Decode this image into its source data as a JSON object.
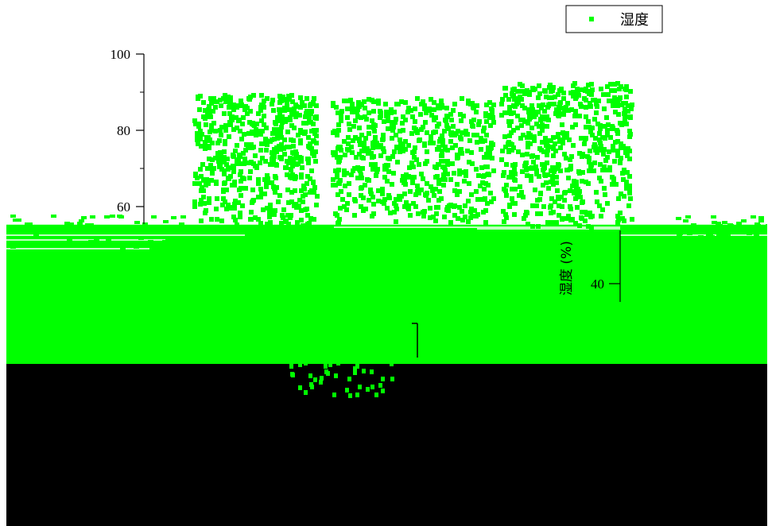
{
  "chart_data": {
    "type": "scatter",
    "title": "",
    "ylabel": "湿度 (%)",
    "ylim": [
      0,
      100
    ],
    "yticks": [
      "100",
      "80",
      "60",
      "40"
    ],
    "grid": false,
    "legend_position": "top-right",
    "series": [
      {
        "name": "湿度",
        "color": "#00ff00",
        "clusters": [
          {
            "x_range": [
              0.25,
              0.41
            ],
            "y_range": [
              55,
              90
            ]
          },
          {
            "x_range": [
              0.43,
              0.64
            ],
            "y_range": [
              56,
              89
            ]
          },
          {
            "x_range": [
              0.65,
              0.82
            ],
            "y_range": [
              55,
              93
            ]
          }
        ],
        "note_region_low": [
          20,
          57
        ]
      }
    ]
  },
  "style": {
    "point_color": "#00ff00",
    "axis_color": "#000000",
    "band_color": "#00ff00",
    "lower_color": "#000000"
  }
}
